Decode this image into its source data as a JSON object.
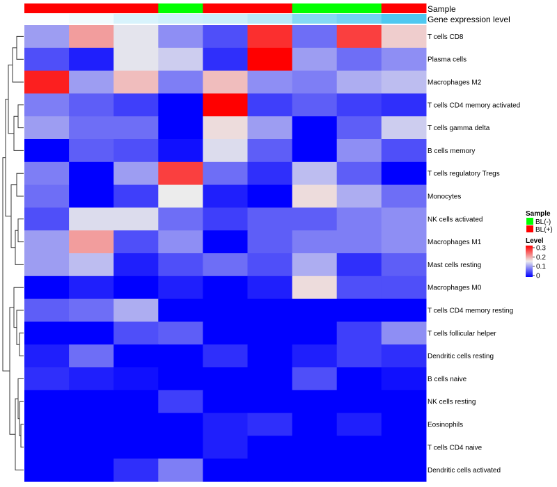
{
  "chart_data": {
    "type": "heatmap",
    "title": "",
    "columns": 9,
    "rows": [
      "T cells CD8",
      "Plasma cells",
      "Macrophages M2",
      "T cells CD4 memory activated",
      "T cells gamma delta",
      "B cells memory",
      "T cells regulatory  Tregs",
      "Monocytes",
      "NK cells activated",
      "Macrophages M1",
      "Mast cells resting",
      "Macrophages M0",
      "T cells CD4 memory resting",
      "T cells follicular helper",
      "Dendritic cells resting",
      "B cells naive",
      "NK cells resting",
      "Eosinophils",
      "T cells CD4 naive",
      "Dendritic cells activated"
    ],
    "values": [
      [
        0.1,
        0.2,
        0.145,
        0.09,
        0.05,
        0.27,
        0.07,
        0.26,
        0.17
      ],
      [
        0.05,
        0.02,
        0.145,
        0.13,
        0.03,
        0.3,
        0.1,
        0.07,
        0.09
      ],
      [
        0.28,
        0.1,
        0.18,
        0.08,
        0.18,
        0.09,
        0.08,
        0.11,
        0.12
      ],
      [
        0.08,
        0.06,
        0.04,
        0.0,
        0.3,
        0.04,
        0.06,
        0.04,
        0.03
      ],
      [
        0.1,
        0.07,
        0.07,
        0.0,
        0.16,
        0.1,
        0.0,
        0.06,
        0.13
      ],
      [
        0.0,
        0.06,
        0.05,
        0.01,
        0.14,
        0.06,
        0.0,
        0.09,
        0.05
      ],
      [
        0.08,
        0.0,
        0.1,
        0.26,
        0.07,
        0.03,
        0.12,
        0.06,
        0.0
      ],
      [
        0.07,
        0.0,
        0.04,
        0.15,
        0.02,
        0.0,
        0.16,
        0.11,
        0.07
      ],
      [
        0.05,
        0.14,
        0.14,
        0.07,
        0.04,
        0.06,
        0.06,
        0.08,
        0.09
      ],
      [
        0.1,
        0.2,
        0.05,
        0.09,
        0.0,
        0.06,
        0.08,
        0.08,
        0.09
      ],
      [
        0.1,
        0.12,
        0.02,
        0.05,
        0.07,
        0.05,
        0.11,
        0.03,
        0.06
      ],
      [
        0.0,
        0.02,
        0.0,
        0.02,
        0.0,
        0.02,
        0.16,
        0.05,
        0.05
      ],
      [
        0.06,
        0.07,
        0.11,
        0.0,
        0.0,
        0.0,
        0.0,
        0.0,
        0.0
      ],
      [
        0.0,
        0.0,
        0.05,
        0.06,
        0.0,
        0.0,
        0.0,
        0.04,
        0.09
      ],
      [
        0.02,
        0.07,
        0.0,
        0.0,
        0.03,
        0.0,
        0.02,
        0.04,
        0.03
      ],
      [
        0.03,
        0.02,
        0.01,
        0.0,
        0.0,
        0.0,
        0.05,
        0.0,
        0.01
      ],
      [
        0.0,
        0.0,
        0.0,
        0.04,
        0.0,
        0.0,
        0.0,
        0.0,
        0.0
      ],
      [
        0.0,
        0.0,
        0.0,
        0.0,
        0.02,
        0.03,
        0.0,
        0.02,
        0.0
      ],
      [
        0.0,
        0.0,
        0.0,
        0.0,
        0.02,
        0.0,
        0.0,
        0.0,
        0.0
      ],
      [
        0.0,
        0.0,
        0.03,
        0.08,
        0.0,
        0.0,
        0.0,
        0.0,
        0.0
      ]
    ],
    "column_annotations": {
      "sample_label": "Sample",
      "sample": [
        "BL(+)",
        "BL(+)",
        "BL(+)",
        "BL(-)",
        "BL(+)",
        "BL(+)",
        "BL(-)",
        "BL(-)",
        "BL(+)"
      ],
      "gene_expression_label": "Gene expression level",
      "gene_expression": [
        0.02,
        0.08,
        0.22,
        0.28,
        0.3,
        0.4,
        0.7,
        0.8,
        1.0
      ]
    },
    "legend": {
      "sample_title": "Sample",
      "sample_entries": [
        {
          "label": "BL(-)",
          "color": "#00ff00"
        },
        {
          "label": "BL(+)",
          "color": "#ff0000"
        }
      ],
      "level_title": "Level",
      "level_ticks": [
        "0.3",
        "0.2",
        "0.1",
        "0"
      ],
      "level_range": [
        0,
        0.3
      ]
    },
    "colors": {
      "low": "#0000ff",
      "mid": "#ececec",
      "high": "#ff0000",
      "gene_low": "#ffffff",
      "gene_high": "#4fc8f0"
    }
  }
}
